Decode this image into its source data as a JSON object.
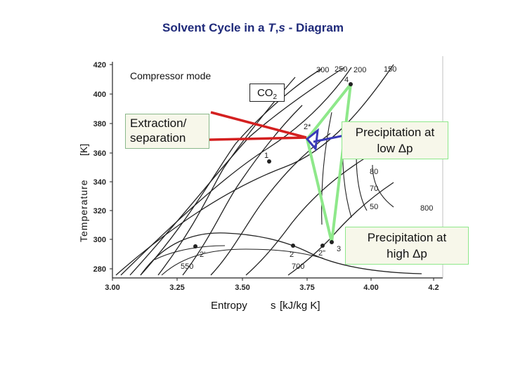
{
  "title": {
    "prefix": "Solvent Cycle in a ",
    "italic_T": "T",
    "comma": ",",
    "italic_s": "s",
    "suffix": " - Diagram"
  },
  "axes": {
    "y_ticks": [
      "420",
      "400",
      "380",
      "360",
      "340",
      "320",
      "300",
      "280"
    ],
    "x_ticks": [
      "3.00",
      "3.25",
      "3.50",
      "3.75",
      "4.00",
      "4.2"
    ],
    "y_label_name": "Temperature",
    "y_label_unit": "[K]",
    "x_label_name": "Entropy",
    "x_label_symbol": "s",
    "x_label_unit": "[kJ/kg K]"
  },
  "curve_labels": {
    "top_300": "300",
    "top_250": "250",
    "top_200": "200",
    "top_150": "150",
    "right_80": "80",
    "right_70": "70",
    "right_50": "50",
    "right_800": "800",
    "bottom_550": "550",
    "bottom_700": "700"
  },
  "points": {
    "p1": "1",
    "p2": "2",
    "p2_prime": "2'",
    "p2_dprime": "2\"",
    "p2_star": "2*",
    "p3": "3",
    "p4": "4"
  },
  "annotations": {
    "compressor_mode": "Compressor mode",
    "co2_main": "CO",
    "co2_sub": "2",
    "extraction": "Extraction/\nseparation",
    "precip_low_line1": "Precipitation at",
    "precip_low_line2": "low Δp",
    "precip_high_line1": "Precipitation at",
    "precip_high_line2": "high Δp"
  },
  "colors": {
    "title": "#1f2a7a",
    "extraction_arrow": "#d42020",
    "precip_low_arrow": "#3a3ab8",
    "green_cycle": "#8ee88a",
    "box_fill": "#f7f7ea"
  }
}
